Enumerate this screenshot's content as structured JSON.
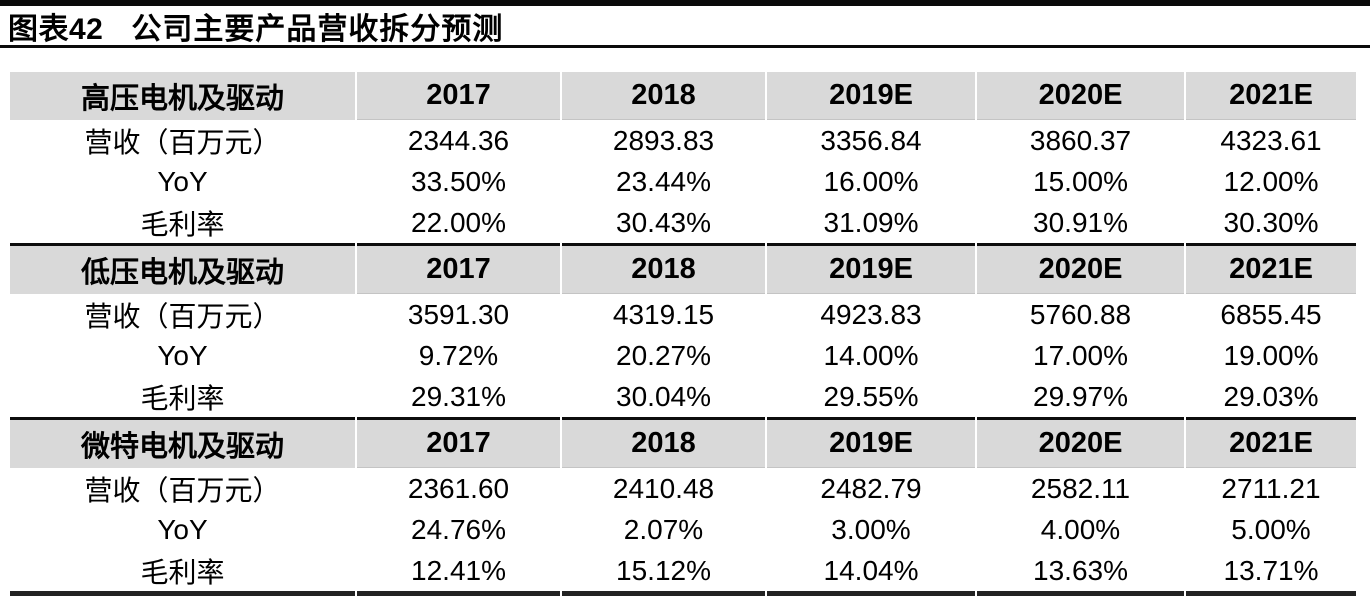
{
  "title": {
    "tag": "图表42",
    "text": "公司主要产品营收拆分预测"
  },
  "colors": {
    "header_band_bg": "#d9d9d9",
    "rule_black": "#0a0a0a",
    "bottom_rule": "#222222",
    "text": "#000000"
  },
  "table": {
    "year_columns": [
      "2017",
      "2018",
      "2019E",
      "2020E",
      "2021E"
    ],
    "sections": [
      {
        "name": "高压电机及驱动",
        "rows": [
          {
            "label": "营收（百万元）",
            "values": [
              "2344.36",
              "2893.83",
              "3356.84",
              "3860.37",
              "4323.61"
            ]
          },
          {
            "label": "YoY",
            "values": [
              "33.50%",
              "23.44%",
              "16.00%",
              "15.00%",
              "12.00%"
            ]
          },
          {
            "label": "毛利率",
            "values": [
              "22.00%",
              "30.43%",
              "31.09%",
              "30.91%",
              "30.30%"
            ]
          }
        ]
      },
      {
        "name": "低压电机及驱动",
        "rows": [
          {
            "label": "营收（百万元）",
            "values": [
              "3591.30",
              "4319.15",
              "4923.83",
              "5760.88",
              "6855.45"
            ]
          },
          {
            "label": "YoY",
            "values": [
              "9.72%",
              "20.27%",
              "14.00%",
              "17.00%",
              "19.00%"
            ]
          },
          {
            "label": "毛利率",
            "values": [
              "29.31%",
              "30.04%",
              "29.55%",
              "29.97%",
              "29.03%"
            ]
          }
        ]
      },
      {
        "name": "微特电机及驱动",
        "rows": [
          {
            "label": "营收（百万元）",
            "values": [
              "2361.60",
              "2410.48",
              "2482.79",
              "2582.11",
              "2711.21"
            ]
          },
          {
            "label": "YoY",
            "values": [
              "24.76%",
              "2.07%",
              "3.00%",
              "4.00%",
              "5.00%"
            ]
          },
          {
            "label": "毛利率",
            "values": [
              "12.41%",
              "15.12%",
              "14.04%",
              "13.63%",
              "13.71%"
            ]
          }
        ]
      }
    ]
  }
}
